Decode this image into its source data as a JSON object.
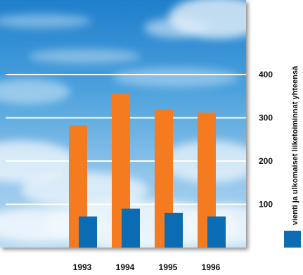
{
  "chart_data": {
    "type": "bar",
    "categories": [
      "1993",
      "1994",
      "1995",
      "1996"
    ],
    "series": [
      {
        "values": [
          282,
          356,
          320,
          312
        ],
        "color": "#f47b20"
      },
      {
        "values": [
          72,
          90,
          80,
          72
        ],
        "color": "#0b6cb3"
      }
    ],
    "ylim": [
      0,
      450
    ],
    "yticks": [
      100,
      200,
      300,
      400
    ],
    "grid": true,
    "legend": {
      "position": "right",
      "label": "vienti ja ulkomaiset liiketoiminnat yhteensä",
      "swatch_color": "#0b6cb3"
    },
    "background": "sky-and-clouds-photo"
  }
}
